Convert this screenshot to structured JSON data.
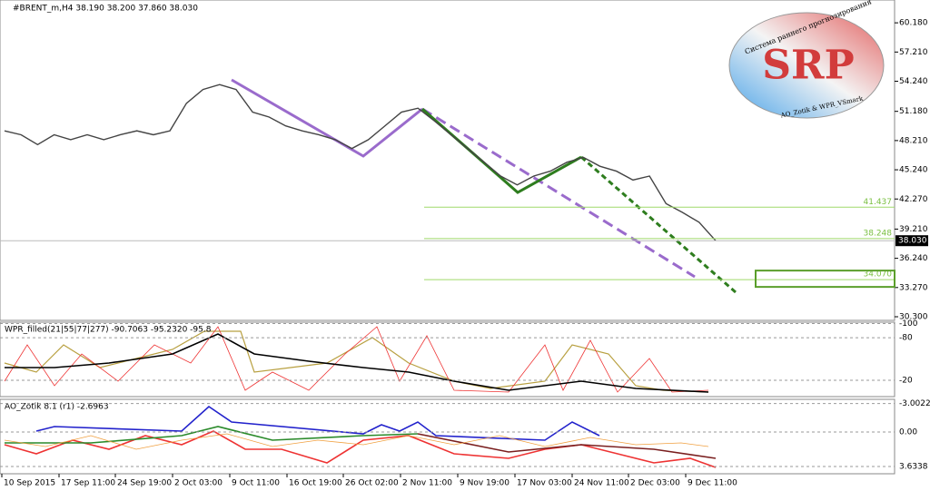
{
  "header": {
    "title": "#BRENT_m,H4 38.190 38.200 37.860 38.030"
  },
  "logo": {
    "brand": "SRP",
    "tagline": "Система раннего прогнозирования",
    "credit": "AO_Zotik & WPR_VSmark"
  },
  "chart_data": {
    "type": "line",
    "ylim": [
      29.93,
      62.5
    ],
    "yticks": [
      {
        "value": 60.18,
        "label": "60.180"
      },
      {
        "value": 57.21,
        "label": "57.210"
      },
      {
        "value": 54.24,
        "label": "54.240"
      },
      {
        "value": 51.18,
        "label": "51.180"
      },
      {
        "value": 48.21,
        "label": "48.210"
      },
      {
        "value": 45.24,
        "label": "45.240"
      },
      {
        "value": 42.27,
        "label": "42.270"
      },
      {
        "value": 39.21,
        "label": "39.210"
      },
      {
        "value": 36.24,
        "label": "36.240"
      },
      {
        "value": 33.27,
        "label": "33.270"
      },
      {
        "value": 30.3,
        "label": "30.300"
      }
    ],
    "series": [
      {
        "color": "#444444",
        "values": [
          49.2,
          48.8,
          47.8,
          48.8,
          48.3,
          48.8,
          48.3,
          48.8,
          49.2,
          48.8,
          49.2,
          52.0,
          53.4,
          53.9,
          53.4,
          51.1,
          50.6,
          49.7,
          49.2,
          48.8,
          48.3,
          47.4,
          48.3,
          49.7,
          51.1,
          51.5,
          50.2,
          48.8,
          47.4,
          46.0,
          44.6,
          43.7,
          44.6,
          45.1,
          46.0,
          46.5,
          45.6,
          45.1,
          44.2,
          44.6,
          41.8,
          40.9,
          39.9,
          38.03
        ]
      }
    ],
    "levels": [
      {
        "value": 41.437,
        "label": "41.437"
      },
      {
        "value": 38.248,
        "label": "38.248"
      },
      {
        "value": 34.07,
        "label": "34.070"
      }
    ],
    "current_price": {
      "value": 38.03,
      "label": "38.030"
    },
    "x_labels": [
      "10 Sep 2015",
      "17 Sep 11:00",
      "24 Sep 19:00",
      "2 Oct 03:00",
      "9 Oct 11:00",
      "16 Oct 19:00",
      "26 Oct 02:00",
      "2 Nov 11:00",
      "9 Nov 19:00",
      "17 Nov 03:00",
      "24 Nov 11:00",
      "2 Dec 03:00",
      "9 Dec 11:00"
    ]
  },
  "wpr": {
    "title": "WPR_filled(21|55|77|277) -90.7063 -95.2320 -95.8",
    "ylim": [
      3,
      -102
    ],
    "yticks": [
      {
        "value": -20,
        "label": "-20"
      },
      {
        "value": -80,
        "label": "-80"
      },
      {
        "value": -100,
        "label": "-100"
      }
    ]
  },
  "ao": {
    "title": "AO_Zotik 8.1 (r1) -2.6963",
    "ylim": [
      4.4,
      -3.44
    ],
    "yticks": [
      {
        "value": 3.6338,
        "label": "3.6338"
      },
      {
        "value": 0,
        "label": "0.00"
      },
      {
        "value": -3.0022,
        "label": "-3.0022"
      }
    ]
  }
}
